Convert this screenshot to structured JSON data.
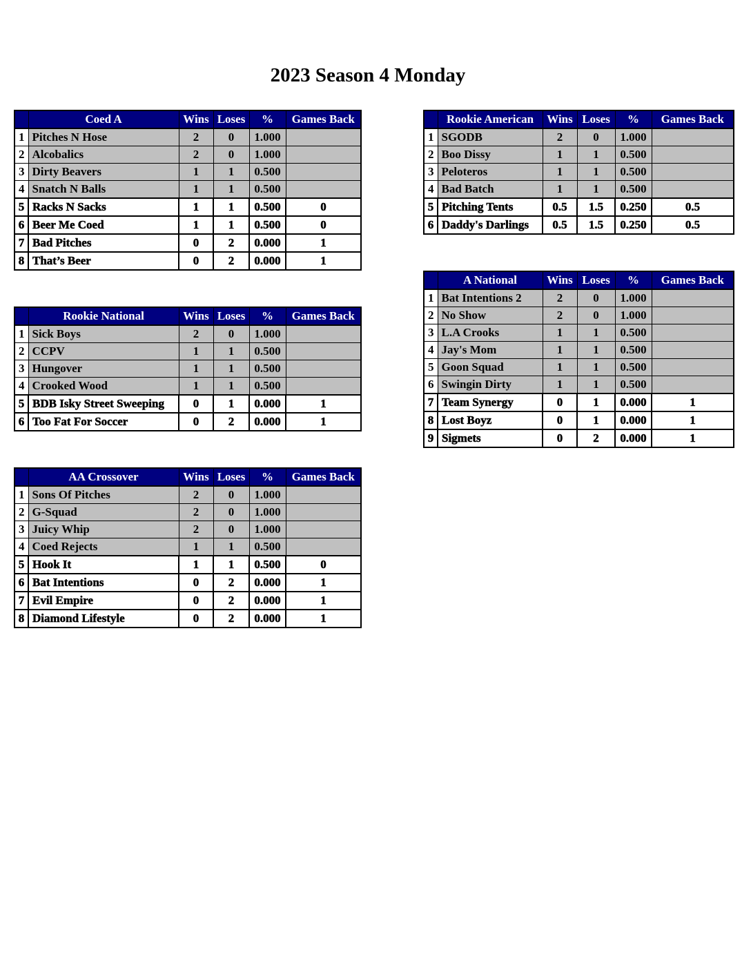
{
  "page": {
    "title": "2023 Season 4 Monday"
  },
  "columns": {
    "wins": "Wins",
    "loses": "Loses",
    "pct": "%",
    "games_back": "Games Back"
  },
  "colors": {
    "header_bg": "#000080",
    "header_text": "#ffffff",
    "shaded_row_bg": "#c0c0c0",
    "unshaded_row_bg": "#ffffff",
    "border": "#000000"
  },
  "tables": {
    "coed_a": {
      "league": "Coed A",
      "rows": [
        {
          "rank": "1",
          "team": "Pitches N Hose",
          "wins": "2",
          "loses": "0",
          "pct": "1.000",
          "gb": ""
        },
        {
          "rank": "2",
          "team": "Alcobalics",
          "wins": "2",
          "loses": "0",
          "pct": "1.000",
          "gb": ""
        },
        {
          "rank": "3",
          "team": "Dirty Beavers",
          "wins": "1",
          "loses": "1",
          "pct": "0.500",
          "gb": ""
        },
        {
          "rank": "4",
          "team": "Snatch N Balls",
          "wins": "1",
          "loses": "1",
          "pct": "0.500",
          "gb": ""
        },
        {
          "rank": "5",
          "team": "Racks N Sacks",
          "wins": "1",
          "loses": "1",
          "pct": "0.500",
          "gb": "0"
        },
        {
          "rank": "6",
          "team": "Beer Me Coed",
          "wins": "1",
          "loses": "1",
          "pct": "0.500",
          "gb": "0"
        },
        {
          "rank": "7",
          "team": "Bad Pitches",
          "wins": "0",
          "loses": "2",
          "pct": "0.000",
          "gb": "1"
        },
        {
          "rank": "8",
          "team": "That’s Beer",
          "wins": "0",
          "loses": "2",
          "pct": "0.000",
          "gb": "1"
        }
      ]
    },
    "rookie_american": {
      "league": "Rookie American",
      "rows": [
        {
          "rank": "1",
          "team": "SGODB",
          "wins": "2",
          "loses": "0",
          "pct": "1.000",
          "gb": ""
        },
        {
          "rank": "2",
          "team": "Boo Dissy",
          "wins": "1",
          "loses": "1",
          "pct": "0.500",
          "gb": ""
        },
        {
          "rank": "3",
          "team": "Peloteros",
          "wins": "1",
          "loses": "1",
          "pct": "0.500",
          "gb": ""
        },
        {
          "rank": "4",
          "team": "Bad Batch",
          "wins": "1",
          "loses": "1",
          "pct": "0.500",
          "gb": ""
        },
        {
          "rank": "5",
          "team": "Pitching Tents",
          "wins": "0.5",
          "loses": "1.5",
          "pct": "0.250",
          "gb": "0.5"
        },
        {
          "rank": "6",
          "team": "Daddy's Darlings",
          "wins": "0.5",
          "loses": "1.5",
          "pct": "0.250",
          "gb": "0.5"
        }
      ]
    },
    "a_national": {
      "league": "A National",
      "rows": [
        {
          "rank": "1",
          "team": "Bat Intentions 2",
          "wins": "2",
          "loses": "0",
          "pct": "1.000",
          "gb": ""
        },
        {
          "rank": "2",
          "team": "No Show",
          "wins": "2",
          "loses": "0",
          "pct": "1.000",
          "gb": ""
        },
        {
          "rank": "3",
          "team": "L.A Crooks",
          "wins": "1",
          "loses": "1",
          "pct": "0.500",
          "gb": ""
        },
        {
          "rank": "4",
          "team": "Jay's Mom",
          "wins": "1",
          "loses": "1",
          "pct": "0.500",
          "gb": ""
        },
        {
          "rank": "5",
          "team": "Goon Squad",
          "wins": "1",
          "loses": "1",
          "pct": "0.500",
          "gb": ""
        },
        {
          "rank": "6",
          "team": "Swingin Dirty",
          "wins": "1",
          "loses": "1",
          "pct": "0.500",
          "gb": ""
        },
        {
          "rank": "7",
          "team": "Team Synergy",
          "wins": "0",
          "loses": "1",
          "pct": "0.000",
          "gb": "1"
        },
        {
          "rank": "8",
          "team": "Lost Boyz",
          "wins": "0",
          "loses": "1",
          "pct": "0.000",
          "gb": "1"
        },
        {
          "rank": "9",
          "team": "Sigmets",
          "wins": "0",
          "loses": "2",
          "pct": "0.000",
          "gb": "1"
        }
      ]
    },
    "rookie_national": {
      "league": "Rookie National",
      "rows": [
        {
          "rank": "1",
          "team": "Sick Boys",
          "wins": "2",
          "loses": "0",
          "pct": "1.000",
          "gb": ""
        },
        {
          "rank": "2",
          "team": "CCPV",
          "wins": "1",
          "loses": "1",
          "pct": "0.500",
          "gb": ""
        },
        {
          "rank": "3",
          "team": "Hungover",
          "wins": "1",
          "loses": "1",
          "pct": "0.500",
          "gb": ""
        },
        {
          "rank": "4",
          "team": "Crooked Wood",
          "wins": "1",
          "loses": "1",
          "pct": "0.500",
          "gb": ""
        },
        {
          "rank": "5",
          "team": "BDB Isky Street Sweeping",
          "wins": "0",
          "loses": "1",
          "pct": "0.000",
          "gb": "1"
        },
        {
          "rank": "6",
          "team": "Too Fat For Soccer",
          "wins": "0",
          "loses": "2",
          "pct": "0.000",
          "gb": "1"
        }
      ]
    },
    "aa_crossover": {
      "league": "AA Crossover",
      "rows": [
        {
          "rank": "1",
          "team": "Sons Of Pitches",
          "wins": "2",
          "loses": "0",
          "pct": "1.000",
          "gb": ""
        },
        {
          "rank": "2",
          "team": "G-Squad",
          "wins": "2",
          "loses": "0",
          "pct": "1.000",
          "gb": ""
        },
        {
          "rank": "3",
          "team": "Juicy Whip",
          "wins": "2",
          "loses": "0",
          "pct": "1.000",
          "gb": ""
        },
        {
          "rank": "4",
          "team": "Coed Rejects",
          "wins": "1",
          "loses": "1",
          "pct": "0.500",
          "gb": ""
        },
        {
          "rank": "5",
          "team": "Hook It",
          "wins": "1",
          "loses": "1",
          "pct": "0.500",
          "gb": "0"
        },
        {
          "rank": "6",
          "team": "Bat Intentions",
          "wins": "0",
          "loses": "2",
          "pct": "0.000",
          "gb": "1"
        },
        {
          "rank": "7",
          "team": "Evil Empire",
          "wins": "0",
          "loses": "2",
          "pct": "0.000",
          "gb": "1"
        },
        {
          "rank": "8",
          "team": "Diamond Lifestyle",
          "wins": "0",
          "loses": "2",
          "pct": "0.000",
          "gb": "1"
        }
      ]
    }
  }
}
